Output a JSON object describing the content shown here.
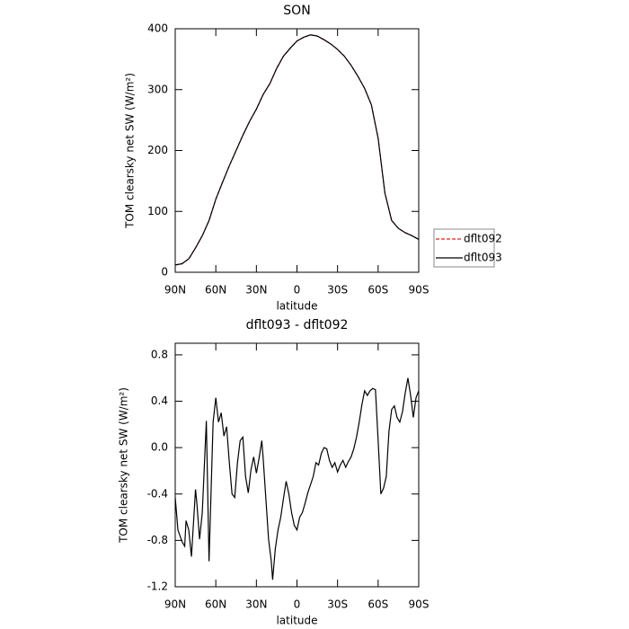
{
  "chart_data": [
    {
      "type": "line",
      "title": "SON",
      "x_label": "latitude",
      "y_label": "TOM clearsky net SW (W/m²)",
      "x": [
        90,
        85,
        80,
        75,
        70,
        65,
        60,
        55,
        50,
        45,
        40,
        35,
        30,
        25,
        20,
        15,
        10,
        5,
        0,
        -5,
        -10,
        -15,
        -20,
        -25,
        -30,
        -35,
        -40,
        -45,
        -50,
        -55,
        -60,
        -65,
        -70,
        -75,
        -80,
        -85,
        -90
      ],
      "series": [
        {
          "name": "dflt092",
          "color": "#e0201b",
          "style": "dashed",
          "values": [
            12,
            14,
            22,
            40,
            60,
            85,
            120,
            148,
            175,
            200,
            225,
            248,
            268,
            292,
            310,
            335,
            355,
            368,
            380,
            386,
            390,
            388,
            382,
            375,
            366,
            355,
            340,
            322,
            302,
            275,
            220,
            130,
            85,
            72,
            65,
            60,
            54
          ]
        },
        {
          "name": "dflt093",
          "color": "#000000",
          "style": "solid",
          "values": [
            12,
            14,
            22,
            40,
            60,
            85,
            120,
            148,
            175,
            200,
            225,
            248,
            268,
            292,
            310,
            335,
            355,
            368,
            380,
            386,
            390,
            388,
            382,
            375,
            366,
            355,
            340,
            322,
            302,
            275,
            220,
            130,
            85,
            72,
            65,
            60,
            54
          ]
        }
      ],
      "xlim": [
        90,
        -90
      ],
      "xticks": [
        {
          "value": 90,
          "label": "90N"
        },
        {
          "value": 60,
          "label": "60N"
        },
        {
          "value": 30,
          "label": "30N"
        },
        0,
        {
          "value": -30,
          "label": "30S"
        },
        {
          "value": -60,
          "label": "60S"
        },
        {
          "value": -90,
          "label": "90S"
        }
      ],
      "ylim": [
        0,
        400
      ],
      "yticks": [
        0,
        100,
        200,
        300,
        400
      ],
      "legend": "right"
    },
    {
      "type": "line",
      "title": "dflt093 - dflt092",
      "x_label": "latitude",
      "y_label": "TOM clearsky net SW (W/m²)",
      "x": [
        90,
        88,
        85,
        83,
        82,
        80,
        78,
        75,
        74,
        72,
        70,
        67,
        65,
        62,
        60,
        58,
        56,
        54,
        52,
        50,
        48,
        46,
        44,
        42,
        40,
        38,
        36,
        34,
        32,
        30,
        28,
        26,
        25,
        23,
        21,
        19,
        18,
        16,
        14,
        12,
        10,
        8,
        6,
        4,
        2,
        0,
        -2,
        -4,
        -6,
        -8,
        -10,
        -12,
        -14,
        -16,
        -18,
        -20,
        -22,
        -24,
        -26,
        -28,
        -30,
        -32,
        -34,
        -36,
        -38,
        -40,
        -42,
        -44,
        -46,
        -48,
        -50,
        -52,
        -54,
        -56,
        -58,
        -60,
        -62,
        -64,
        -66,
        -68,
        -70,
        -72,
        -74,
        -76,
        -78,
        -80,
        -82,
        -84,
        -86,
        -88,
        -90
      ],
      "series": [
        {
          "color": "#000000",
          "style": "solid",
          "values": [
            -0.43,
            -0.71,
            -0.81,
            -0.85,
            -0.63,
            -0.71,
            -0.94,
            -0.36,
            -0.48,
            -0.79,
            -0.56,
            0.23,
            -0.98,
            0.22,
            0.43,
            0.22,
            0.3,
            0.1,
            0.18,
            -0.13,
            -0.4,
            -0.43,
            -0.13,
            0.06,
            0.09,
            -0.25,
            -0.39,
            -0.19,
            -0.08,
            -0.22,
            -0.09,
            0.06,
            -0.09,
            -0.44,
            -0.79,
            -0.98,
            -1.14,
            -0.87,
            -0.71,
            -0.6,
            -0.44,
            -0.29,
            -0.4,
            -0.56,
            -0.67,
            -0.71,
            -0.6,
            -0.56,
            -0.48,
            -0.39,
            -0.32,
            -0.25,
            -0.13,
            -0.15,
            -0.05,
            0.0,
            -0.01,
            -0.11,
            -0.17,
            -0.13,
            -0.21,
            -0.15,
            -0.11,
            -0.17,
            -0.12,
            -0.08,
            -0.01,
            0.09,
            0.22,
            0.37,
            0.49,
            0.45,
            0.49,
            0.51,
            0.5,
            0.06,
            -0.4,
            -0.35,
            -0.25,
            0.14,
            0.33,
            0.36,
            0.26,
            0.22,
            0.31,
            0.47,
            0.6,
            0.45,
            0.26,
            0.43,
            0.49
          ]
        }
      ],
      "xlim": [
        90,
        -90
      ],
      "xticks": [
        {
          "value": 90,
          "label": "90N"
        },
        {
          "value": 60,
          "label": "60N"
        },
        {
          "value": 30,
          "label": "30N"
        },
        0,
        {
          "value": -30,
          "label": "30S"
        },
        {
          "value": -60,
          "label": "60S"
        },
        {
          "value": -90,
          "label": "90S"
        }
      ],
      "ylim": [
        -1.2,
        0.9
      ],
      "yticks": [
        -1.2,
        -0.8,
        -0.4,
        {
          "value": 0,
          "label": "0.0"
        },
        0.4,
        0.8
      ]
    }
  ]
}
